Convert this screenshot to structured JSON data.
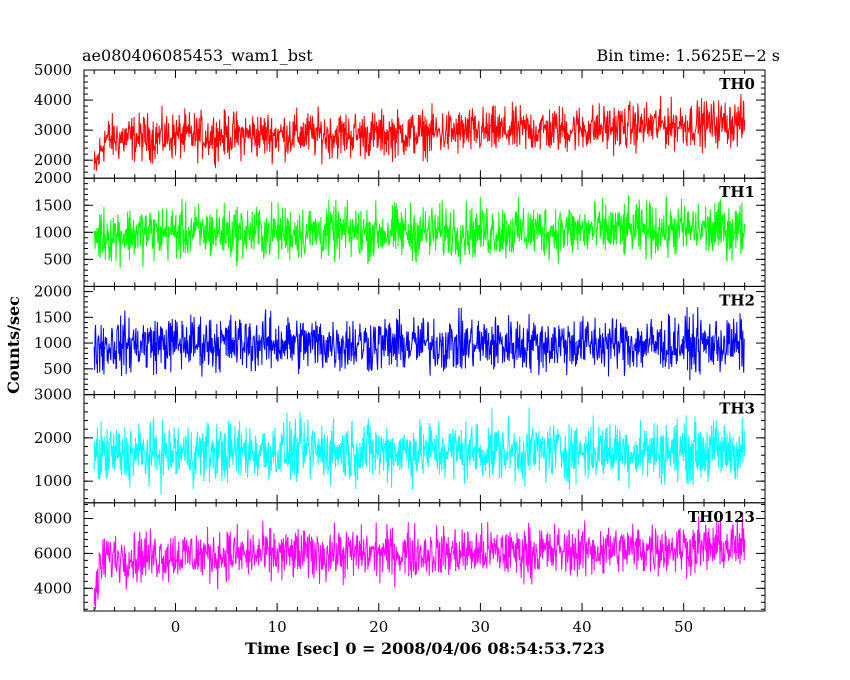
{
  "header": {
    "title": "ae080406085453_wam1_bst",
    "bin_time": "Bin time: 1.5625E−2 s"
  },
  "chart_data": {
    "type": "line",
    "title": "ae080406085453_wam1_bst",
    "xlabel": "Time [sec] 0 = 2008/04/06 08:54:53.723",
    "ylabel": "Counts/sec",
    "xlim": [
      -9,
      58
    ],
    "x_ticks": [
      0,
      10,
      20,
      30,
      40,
      50
    ],
    "x_start": -8,
    "x_end": 56,
    "panels": [
      {
        "name": "TH0",
        "color": "#ff0000",
        "ylim": [
          1400,
          5000
        ],
        "y_ticks": [
          2000,
          3000,
          4000,
          5000
        ],
        "series": [
          {
            "x": -8,
            "y": 1600
          },
          {
            "x": -7,
            "y": 2700
          },
          {
            "x": 0,
            "y": 2800
          },
          {
            "x": 10,
            "y": 2850
          },
          {
            "x": 20,
            "y": 2850
          },
          {
            "x": 30,
            "y": 2950
          },
          {
            "x": 40,
            "y": 3050
          },
          {
            "x": 50,
            "y": 3200
          },
          {
            "x": 56,
            "y": 3250
          }
        ],
        "spread": 1000
      },
      {
        "name": "TH1",
        "color": "#00ff00",
        "ylim": [
          0,
          2000
        ],
        "y_ticks": [
          500,
          1000,
          1500,
          2000
        ],
        "series": [
          {
            "x": -8,
            "y": 950
          },
          {
            "x": 0,
            "y": 1000
          },
          {
            "x": 10,
            "y": 1000
          },
          {
            "x": 20,
            "y": 1000
          },
          {
            "x": 30,
            "y": 1020
          },
          {
            "x": 40,
            "y": 1030
          },
          {
            "x": 50,
            "y": 1050
          },
          {
            "x": 56,
            "y": 1050
          }
        ],
        "spread": 650
      },
      {
        "name": "TH2",
        "color": "#0000ff",
        "ylim": [
          0,
          2100
        ],
        "y_ticks": [
          500,
          1000,
          1500,
          2000
        ],
        "series": [
          {
            "x": -8,
            "y": 950
          },
          {
            "x": 0,
            "y": 1000
          },
          {
            "x": 10,
            "y": 1000
          },
          {
            "x": 20,
            "y": 980
          },
          {
            "x": 30,
            "y": 980
          },
          {
            "x": 40,
            "y": 980
          },
          {
            "x": 50,
            "y": 980
          },
          {
            "x": 56,
            "y": 970
          }
        ],
        "spread": 700
      },
      {
        "name": "TH3",
        "color": "#00ffff",
        "ylim": [
          500,
          3000
        ],
        "y_ticks": [
          1000,
          2000,
          3000
        ],
        "series": [
          {
            "x": -8,
            "y": 1600
          },
          {
            "x": 0,
            "y": 1650
          },
          {
            "x": 10,
            "y": 1700
          },
          {
            "x": 20,
            "y": 1700
          },
          {
            "x": 30,
            "y": 1700
          },
          {
            "x": 40,
            "y": 1700
          },
          {
            "x": 50,
            "y": 1700
          },
          {
            "x": 56,
            "y": 1700
          }
        ],
        "spread": 900
      },
      {
        "name": "TH0123",
        "color": "#ff00ff",
        "ylim": [
          2700,
          8900
        ],
        "y_ticks": [
          4000,
          6000,
          8000
        ],
        "series": [
          {
            "x": -8,
            "y": 3500
          },
          {
            "x": -7,
            "y": 5800
          },
          {
            "x": 0,
            "y": 5900
          },
          {
            "x": 10,
            "y": 5950
          },
          {
            "x": 20,
            "y": 6000
          },
          {
            "x": 30,
            "y": 6050
          },
          {
            "x": 40,
            "y": 6150
          },
          {
            "x": 50,
            "y": 6350
          },
          {
            "x": 56,
            "y": 6400
          }
        ],
        "spread": 1900
      }
    ]
  }
}
